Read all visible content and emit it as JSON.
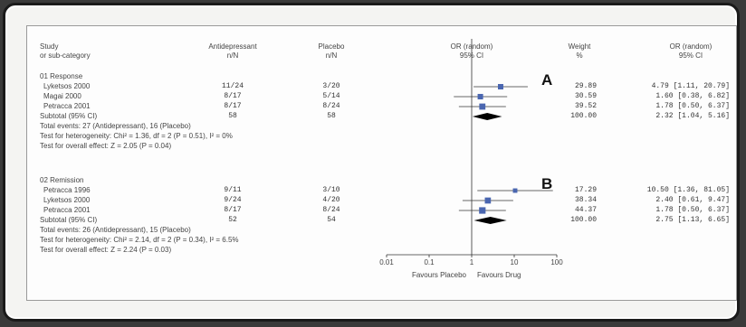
{
  "header": {
    "study": "Study",
    "sub": "or sub-category",
    "anti": "Antidepressant",
    "anti_sub": "n/N",
    "placebo": "Placebo",
    "placebo_sub": "n/N",
    "or": "OR (random)",
    "or_sub": "95% CI",
    "weight": "Weight",
    "weight_sub": "%",
    "or2": "OR (random)",
    "or2_sub": "95% CI"
  },
  "colors": {
    "marker": "#4a66b0",
    "diamond": "#000000",
    "line": "#333333"
  },
  "chart_data": {
    "type": "forest",
    "xscale": "log",
    "xticks": [
      "0.01",
      "0.1",
      "1",
      "10",
      "100"
    ],
    "xlim": [
      0.01,
      100
    ],
    "null_line": 1,
    "xlabel_left": "Favours Placebo",
    "xlabel_right": "Favours Drug",
    "groups": [
      {
        "title": "01 Response",
        "letter": "A",
        "studies": [
          {
            "name": "Lyketsos 2000",
            "anti": "11/24",
            "placebo": "3/20",
            "weight": "29.89",
            "ci_text": "4.79 [1.11, 20.79]",
            "or": 4.79,
            "lo": 1.11,
            "hi": 20.79
          },
          {
            "name": "Magai 2000",
            "anti": "8/17",
            "placebo": "5/14",
            "weight": "30.59",
            "ci_text": "1.60 [0.38, 6.82]",
            "or": 1.6,
            "lo": 0.38,
            "hi": 6.82
          },
          {
            "name": "Petracca 2001",
            "anti": "8/17",
            "placebo": "8/24",
            "weight": "39.52",
            "ci_text": "1.78 [0.50, 6.37]",
            "or": 1.78,
            "lo": 0.5,
            "hi": 6.37
          }
        ],
        "subtotal": {
          "label": "Subtotal (95% CI)",
          "anti": "58",
          "placebo": "58",
          "weight": "100.00",
          "ci_text": "2.32 [1.04, 5.16]",
          "or": 2.32,
          "lo": 1.04,
          "hi": 5.16
        },
        "notes": [
          "Total events: 27 (Antidepressant), 16 (Placebo)",
          "Test for heterogeneity: Chi² = 1.36, df = 2 (P = 0.51), I² = 0%",
          "Test for overall effect: Z = 2.05 (P = 0.04)"
        ]
      },
      {
        "title": "02 Remission",
        "letter": "B",
        "studies": [
          {
            "name": "Petracca 1996",
            "anti": "9/11",
            "placebo": "3/10",
            "weight": "17.29",
            "ci_text": "10.50 [1.36, 81.05]",
            "or": 10.5,
            "lo": 1.36,
            "hi": 81.05
          },
          {
            "name": "Lyketsos 2000",
            "anti": "9/24",
            "placebo": "4/20",
            "weight": "38.34",
            "ci_text": "2.40 [0.61, 9.47]",
            "or": 2.4,
            "lo": 0.61,
            "hi": 9.47
          },
          {
            "name": "Petracca 2001",
            "anti": "8/17",
            "placebo": "8/24",
            "weight": "44.37",
            "ci_text": "1.78 [0.50, 6.37]",
            "or": 1.78,
            "lo": 0.5,
            "hi": 6.37
          }
        ],
        "subtotal": {
          "label": "Subtotal (95% CI)",
          "anti": "52",
          "placebo": "54",
          "weight": "100.00",
          "ci_text": "2.75 [1.13, 6.65]",
          "or": 2.75,
          "lo": 1.13,
          "hi": 6.65
        },
        "notes": [
          "Total events: 26 (Antidepressant), 15 (Placebo)",
          "Test for heterogeneity: Chi² = 2.14, df = 2 (P = 0.34), I² = 6.5%",
          "Test for overall effect: Z = 2.24 (P = 0.03)"
        ]
      }
    ]
  }
}
